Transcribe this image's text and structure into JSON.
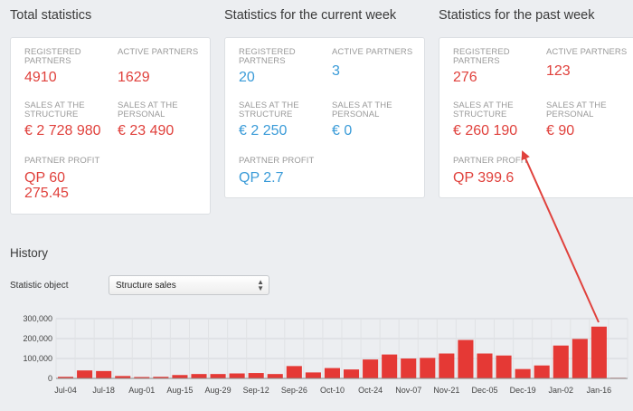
{
  "sections": {
    "total": {
      "title": "Total statistics",
      "registered_label": "Registered partners",
      "registered_value": "4910",
      "active_label": "Active partners",
      "active_value": "1629",
      "structure_label": "Sales at the structure",
      "structure_value": "€ 2 728 980",
      "personal_label": "Sales at the personal",
      "personal_value": "€ 23 490",
      "profit_label": "Partner profit",
      "profit_value_line1": "QP 60",
      "profit_value_line2": "275.45"
    },
    "current_week": {
      "title": "Statistics for the current week",
      "registered_label": "Registered partners",
      "registered_value": "20",
      "active_label": "Active partners",
      "active_value": "3",
      "structure_label": "Sales at the structure",
      "structure_value": "€ 2 250",
      "personal_label": "Sales at the personal",
      "personal_value": "€ 0",
      "profit_label": "Partner profit",
      "profit_value": "QP 2.7"
    },
    "past_week": {
      "title": "Statistics for the past week",
      "registered_label": "Registered partners",
      "registered_value": "276",
      "active_label": "Active partners",
      "active_value": "123",
      "structure_label": "Sales at the structure",
      "structure_value": "€ 260 190",
      "personal_label": "Sales at the personal",
      "personal_value": "€ 90",
      "profit_label": "Partner profit",
      "profit_value": "QP 399.6"
    }
  },
  "history": {
    "title": "History",
    "object_label": "Statistic object",
    "selected_object": "Structure sales"
  },
  "colors": {
    "red": "#e0413c",
    "blue": "#3a9bd8",
    "bar": "#e53935"
  },
  "chart_data": {
    "type": "bar",
    "title": "",
    "xlabel": "",
    "ylabel": "",
    "ylim": [
      0,
      300000
    ],
    "y_ticks": [
      "0",
      "100,000",
      "200,000",
      "300,000"
    ],
    "x_tick_labels": [
      "Jul-04",
      "Jul-18",
      "Aug-01",
      "Aug-15",
      "Aug-29",
      "Sep-12",
      "Sep-26",
      "Oct-10",
      "Oct-24",
      "Nov-07",
      "Nov-21",
      "Dec-05",
      "Dec-19",
      "Jan-02",
      "Jan-16"
    ],
    "values": [
      8000,
      40000,
      37000,
      12000,
      7000,
      8000,
      17000,
      22000,
      22000,
      25000,
      27000,
      22000,
      62000,
      30000,
      52000,
      45000,
      95000,
      120000,
      100000,
      103000,
      125000,
      193000,
      125000,
      115000,
      47000,
      65000,
      165000,
      198000,
      260000,
      3000
    ],
    "grid": true
  }
}
